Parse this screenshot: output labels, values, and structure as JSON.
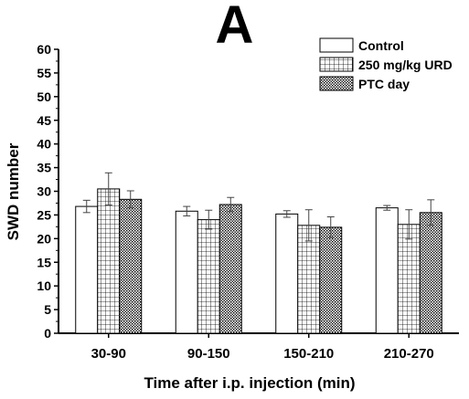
{
  "chart_data": {
    "type": "bar",
    "panel_label": "A",
    "xlabel": "Time after i.p. injection (min)",
    "ylabel": "SWD number",
    "ylim": [
      0,
      60
    ],
    "yticks": [
      0,
      5,
      10,
      15,
      20,
      25,
      30,
      35,
      40,
      45,
      50,
      55,
      60
    ],
    "categories": [
      "30-90",
      "90-150",
      "150-210",
      "210-270"
    ],
    "legend_position": "top-right",
    "grid": false,
    "series": [
      {
        "name": "Control",
        "pattern": "solid",
        "values": [
          26.8,
          25.8,
          25.2,
          26.5
        ],
        "errors": [
          1.3,
          1.0,
          0.7,
          0.5
        ]
      },
      {
        "name": "250 mg/kg URD",
        "pattern": "grid",
        "values": [
          30.5,
          24.0,
          22.8,
          23.0
        ],
        "errors": [
          3.4,
          2.0,
          3.3,
          3.1
        ]
      },
      {
        "name": "PTC day",
        "pattern": "dots",
        "values": [
          28.3,
          27.2,
          22.4,
          25.5
        ],
        "errors": [
          1.8,
          1.5,
          2.2,
          2.7
        ]
      }
    ]
  }
}
